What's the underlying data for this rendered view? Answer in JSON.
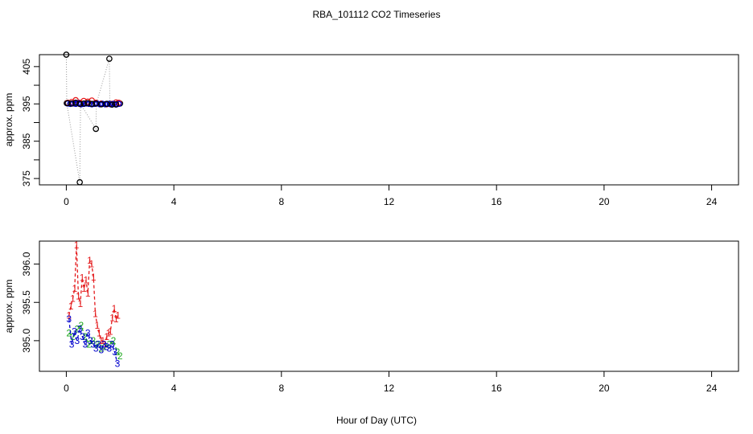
{
  "title": "RBA_101112  CO2 Timeseries",
  "xlabel": "Hour of Day (UTC)",
  "chart_data": [
    {
      "type": "scatter",
      "ylabel": "approx. ppm",
      "xlim": [
        -1,
        25
      ],
      "ylim": [
        373.3,
        408.2
      ],
      "xticks": [
        0,
        4,
        8,
        12,
        16,
        20,
        24
      ],
      "yticks_labeled": [
        375,
        385,
        395,
        405
      ],
      "yticks": [
        375,
        380,
        385,
        390,
        395,
        400,
        405
      ],
      "series": [
        {
          "color": "#000000",
          "line": "dotted-gray",
          "x": [
            0.0,
            0.017,
            0.5,
            0.53,
            1.1,
            1.12,
            1.6,
            1.62,
            2.0
          ],
          "y": [
            408.2,
            395.2,
            374.0,
            395.0,
            388.3,
            395.1,
            407.1,
            395.0,
            395.1
          ]
        },
        {
          "color": "#e41a1c",
          "x": [
            0.05,
            0.2,
            0.35,
            0.5,
            0.65,
            0.8,
            0.95,
            1.1,
            1.3,
            1.5,
            1.7,
            1.85,
            1.95
          ],
          "y": [
            395.3,
            395.5,
            396.0,
            395.3,
            395.8,
            395.6,
            395.9,
            395.3,
            395.1,
            394.9,
            395.0,
            395.4,
            395.3
          ]
        },
        {
          "color": "#0000cc",
          "x": [
            0.05,
            0.15,
            0.25,
            0.35,
            0.45,
            0.55,
            0.65,
            0.75,
            0.85,
            0.95,
            1.05,
            1.15,
            1.25,
            1.35,
            1.45,
            1.55,
            1.65,
            1.75,
            1.85,
            1.95
          ],
          "y": [
            395.1,
            395.0,
            395.1,
            395.0,
            395.2,
            394.9,
            395.0,
            395.1,
            395.0,
            394.9,
            395.0,
            395.1,
            394.9,
            395.0,
            394.9,
            395.0,
            394.9,
            395.0,
            394.8,
            395.0
          ]
        },
        {
          "color": "#000000",
          "x": [
            0.05,
            0.2,
            0.35,
            0.5,
            0.65,
            0.8,
            0.95,
            1.1,
            1.3,
            1.5,
            1.7,
            1.85
          ],
          "y": [
            395.2,
            395.1,
            395.3,
            395.0,
            395.1,
            395.2,
            395.0,
            395.1,
            394.9,
            395.0,
            394.8,
            394.9
          ]
        }
      ]
    },
    {
      "type": "line",
      "ylabel": "approx. ppm",
      "xlim": [
        -1,
        25
      ],
      "ylim": [
        394.6,
        396.3
      ],
      "xticks": [
        0,
        4,
        8,
        12,
        16,
        20,
        24
      ],
      "yticks": [
        395.0,
        395.5,
        396.0
      ],
      "ytick_labels": [
        "395.0",
        "395.5",
        "396.0"
      ],
      "series": [
        {
          "color": "#e41a1c",
          "marker": "1",
          "x": [
            0.1,
            0.17,
            0.24,
            0.31,
            0.38,
            0.45,
            0.52,
            0.59,
            0.66,
            0.73,
            0.8,
            0.87,
            0.94,
            1.01,
            1.08,
            1.15,
            1.22,
            1.29,
            1.36,
            1.43,
            1.5,
            1.57,
            1.64,
            1.71,
            1.78,
            1.85,
            1.92
          ],
          "y": [
            395.33,
            395.45,
            395.55,
            395.68,
            396.25,
            395.58,
            395.48,
            395.82,
            395.68,
            395.79,
            395.62,
            396.05,
            396.0,
            395.83,
            395.35,
            395.2,
            395.1,
            395.0,
            395.0,
            394.95,
            395.05,
            395.1,
            395.12,
            395.3,
            395.42,
            395.28,
            395.33
          ]
        },
        {
          "color": "#22aa22",
          "marker": "2",
          "x": [
            0.1,
            0.25,
            0.4,
            0.55,
            0.7,
            0.85,
            1.0,
            1.15,
            1.3,
            1.45,
            1.6,
            1.75,
            1.9,
            2.0
          ],
          "y": [
            395.1,
            395.05,
            395.15,
            395.2,
            395.05,
            394.95,
            395.0,
            394.95,
            394.9,
            394.92,
            394.95,
            395.0,
            394.85,
            394.8
          ]
        },
        {
          "color": "#0000cc",
          "marker": "3",
          "x": [
            0.1,
            0.2,
            0.3,
            0.4,
            0.5,
            0.6,
            0.7,
            0.8,
            0.9,
            1.0,
            1.1,
            1.2,
            1.3,
            1.4,
            1.5,
            1.6,
            1.7,
            1.8,
            1.9
          ],
          "y": [
            395.28,
            394.95,
            395.12,
            395.0,
            395.15,
            395.05,
            394.95,
            395.1,
            395.0,
            394.95,
            394.9,
            394.95,
            394.88,
            394.95,
            394.92,
            394.9,
            394.95,
            394.85,
            394.7
          ]
        }
      ]
    }
  ]
}
